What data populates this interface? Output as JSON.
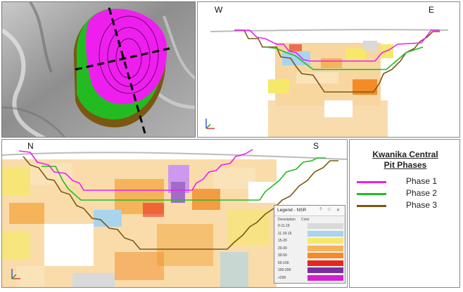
{
  "views": {
    "west_east": {
      "left": "W",
      "right": "E"
    },
    "north_south": {
      "left": "N",
      "right": "S"
    }
  },
  "legend": {
    "title_line1": "Kwanika Central",
    "title_line2": "Pit Phases",
    "phases": [
      {
        "label": "Phase 1",
        "color": "#ee1fee"
      },
      {
        "label": "Phase 2",
        "color": "#22bb22"
      },
      {
        "label": "Phase 3",
        "color": "#7a5812"
      }
    ]
  },
  "nsr_legend": {
    "title": "Legend - NSR",
    "buttons": [
      "?",
      "□",
      "✕"
    ],
    "col_description": "Description",
    "col_color": "Color",
    "bins": [
      {
        "label": "0-11.19",
        "color": "#d9d9d9"
      },
      {
        "label": "11.19-15",
        "color": "#a9d4ee"
      },
      {
        "label": "15-20",
        "color": "#f6e86a"
      },
      {
        "label": "20-30",
        "color": "#f5b35a"
      },
      {
        "label": "30-50",
        "color": "#f28c28"
      },
      {
        "label": "50-100",
        "color": "#e8261d"
      },
      {
        "label": "100-200",
        "color": "#7a2ea0"
      },
      {
        "label": ">200",
        "color": "#d41fd4"
      }
    ]
  }
}
